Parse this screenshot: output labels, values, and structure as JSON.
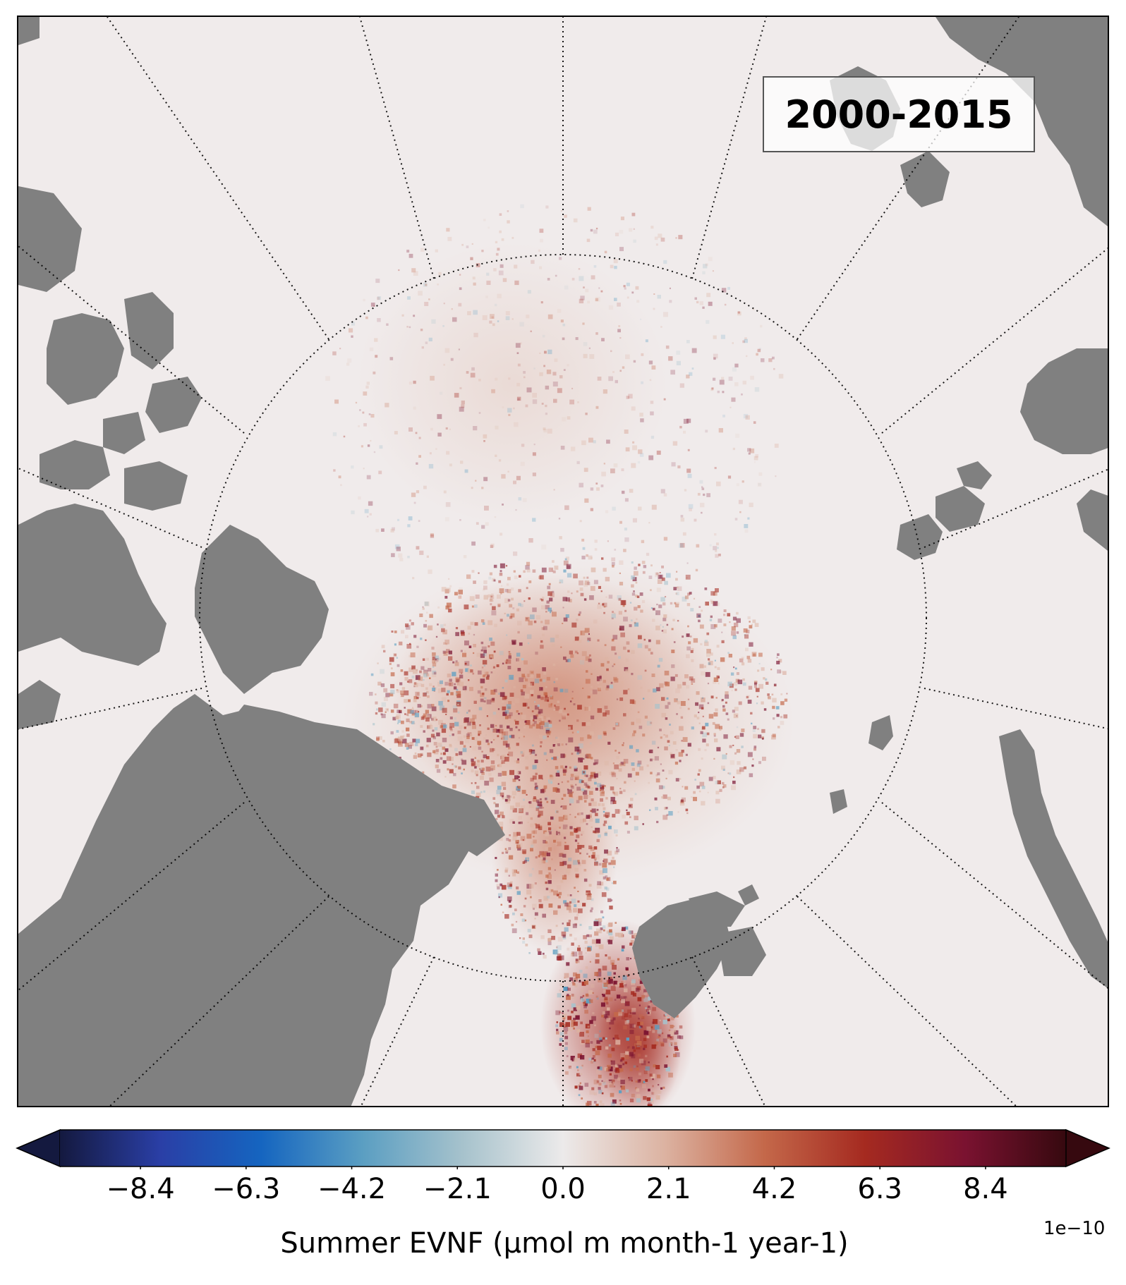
{
  "map": {
    "period_label": "2000-2015",
    "ocean_color": "#f0ebeb",
    "land_color": "#808080",
    "graticule_color": "#000000"
  },
  "colorbar": {
    "tick_labels": [
      "−8.4",
      "−6.3",
      "−4.2",
      "−2.1",
      "0.0",
      "2.1",
      "4.2",
      "6.3",
      "8.4"
    ],
    "ticks": [
      -8.4,
      -6.3,
      -4.2,
      -2.1,
      0.0,
      2.1,
      4.2,
      6.3,
      8.4
    ],
    "vmin": -10.0,
    "vmax": 10.0,
    "extend": "both",
    "label": "Summer EVNF (μmol m month-1 year-1)",
    "offset_text": "1e−10",
    "colormap": [
      "#14193f",
      "#2a3fa6",
      "#1565c0",
      "#5a9ec2",
      "#a6c2cc",
      "#eceaea",
      "#dcb3a2",
      "#c4684a",
      "#a52a20",
      "#7a1230",
      "#36090f"
    ]
  }
}
